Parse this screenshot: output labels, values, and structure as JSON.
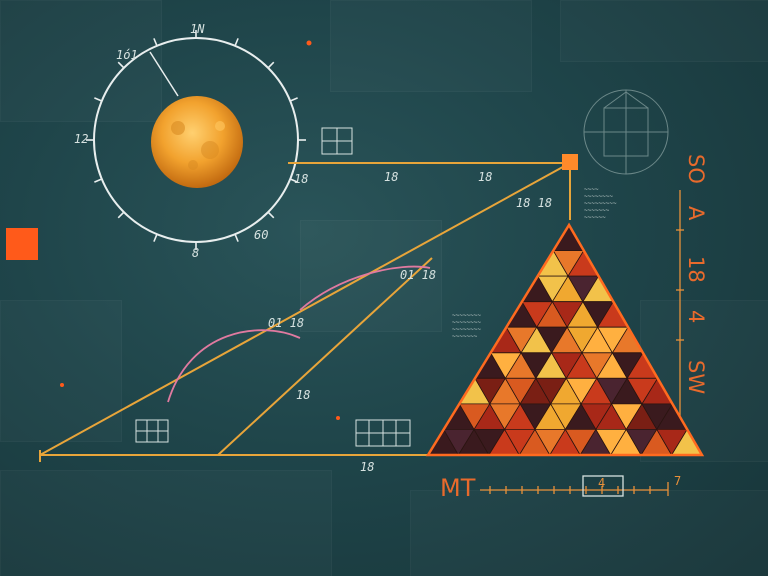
{
  "colors": {
    "background": "#1f454a",
    "construction_line": "#e8a53a",
    "accent_orange": "#ff5a1a",
    "arc_pink": "#e07aa0",
    "dial_white": "#e8eeee",
    "moon": "#f0a030"
  },
  "dial_labels": {
    "top": "1N",
    "top_left": "1ó1",
    "left": "12",
    "right": "18",
    "bottom_right": "60",
    "bottom": "8"
  },
  "line_labels": {
    "upper_1": "18",
    "upper_2": "18",
    "diag_1": "18 18",
    "mid_1": "01 18",
    "mid_2": "01 18",
    "lower": "18",
    "base": "18"
  },
  "side_labels": {
    "s1": "SO",
    "s2": "A",
    "s3": "18",
    "s4": "4",
    "s5": "SW"
  },
  "bottom_label": "MT",
  "scale_label": "4",
  "scale_end": "7",
  "notes": {
    "right_block": "~~~~\n~~~~~~~~\n~~~~~~~~~\n~~~~~~~\n~~~~~~",
    "mid_block": "~~~~~~~~\n~~~~~~~~\n~~~~~~~~\n~~~~~~~"
  }
}
